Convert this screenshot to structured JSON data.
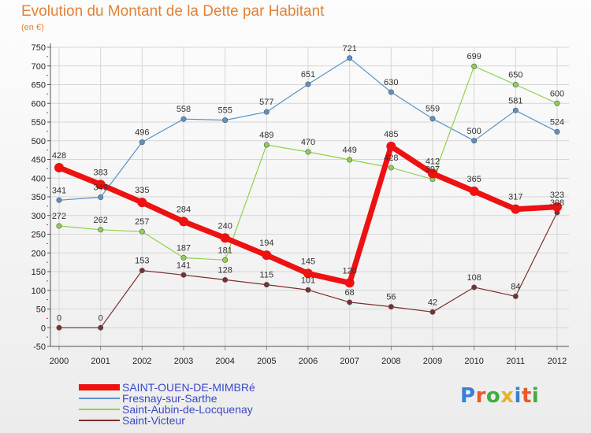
{
  "title": "Evolution du Montant de la Dette par Habitant",
  "subtitle": "(en €)",
  "logo": {
    "text": "Proxiti",
    "letter_colors": [
      "#3a7fd1",
      "#e65a2a",
      "#3fae3f",
      "#e9b22b",
      "#3a7fd1",
      "#e65a2a",
      "#3fae3f"
    ]
  },
  "chart_data": {
    "type": "line",
    "x": [
      "2000",
      "2001",
      "2002",
      "2003",
      "2004",
      "2005",
      "2006",
      "2007",
      "2008",
      "2009",
      "2010",
      "2011",
      "2012"
    ],
    "ylim": [
      -50,
      750
    ],
    "yticks": [
      -50,
      0,
      50,
      100,
      150,
      200,
      250,
      300,
      350,
      400,
      450,
      500,
      550,
      600,
      650,
      700,
      750
    ],
    "grid": true,
    "legend_position": "bottom-left",
    "series": [
      {
        "name": "SAINT-OUEN-DE-MIMBRé",
        "color": "#ee1111",
        "width": 7,
        "values": [
          428,
          383,
          335,
          284,
          240,
          194,
          145,
          120,
          485,
          412,
          365,
          317,
          323
        ]
      },
      {
        "name": "Fresnay-sur-Sarthe",
        "color": "#5b93c7",
        "width": 1.2,
        "values": [
          341,
          349,
          496,
          558,
          555,
          577,
          651,
          721,
          630,
          559,
          500,
          581,
          524
        ]
      },
      {
        "name": "Saint-Aubin-de-Locquenay",
        "color": "#8fd14f",
        "width": 1.2,
        "values": [
          272,
          262,
          257,
          187,
          181,
          489,
          470,
          449,
          428,
          397,
          null,
          650,
          600
        ],
        "segments_override": [
          [
            272,
            262,
            257,
            187,
            181,
            489,
            470,
            449,
            428,
            397,
            699,
            650,
            600
          ]
        ]
      },
      {
        "name": "Saint-Victeur",
        "color": "#7a3030",
        "width": 1.2,
        "values": [
          0,
          0,
          153,
          141,
          128,
          115,
          101,
          68,
          56,
          42,
          108,
          84,
          308
        ]
      }
    ]
  }
}
